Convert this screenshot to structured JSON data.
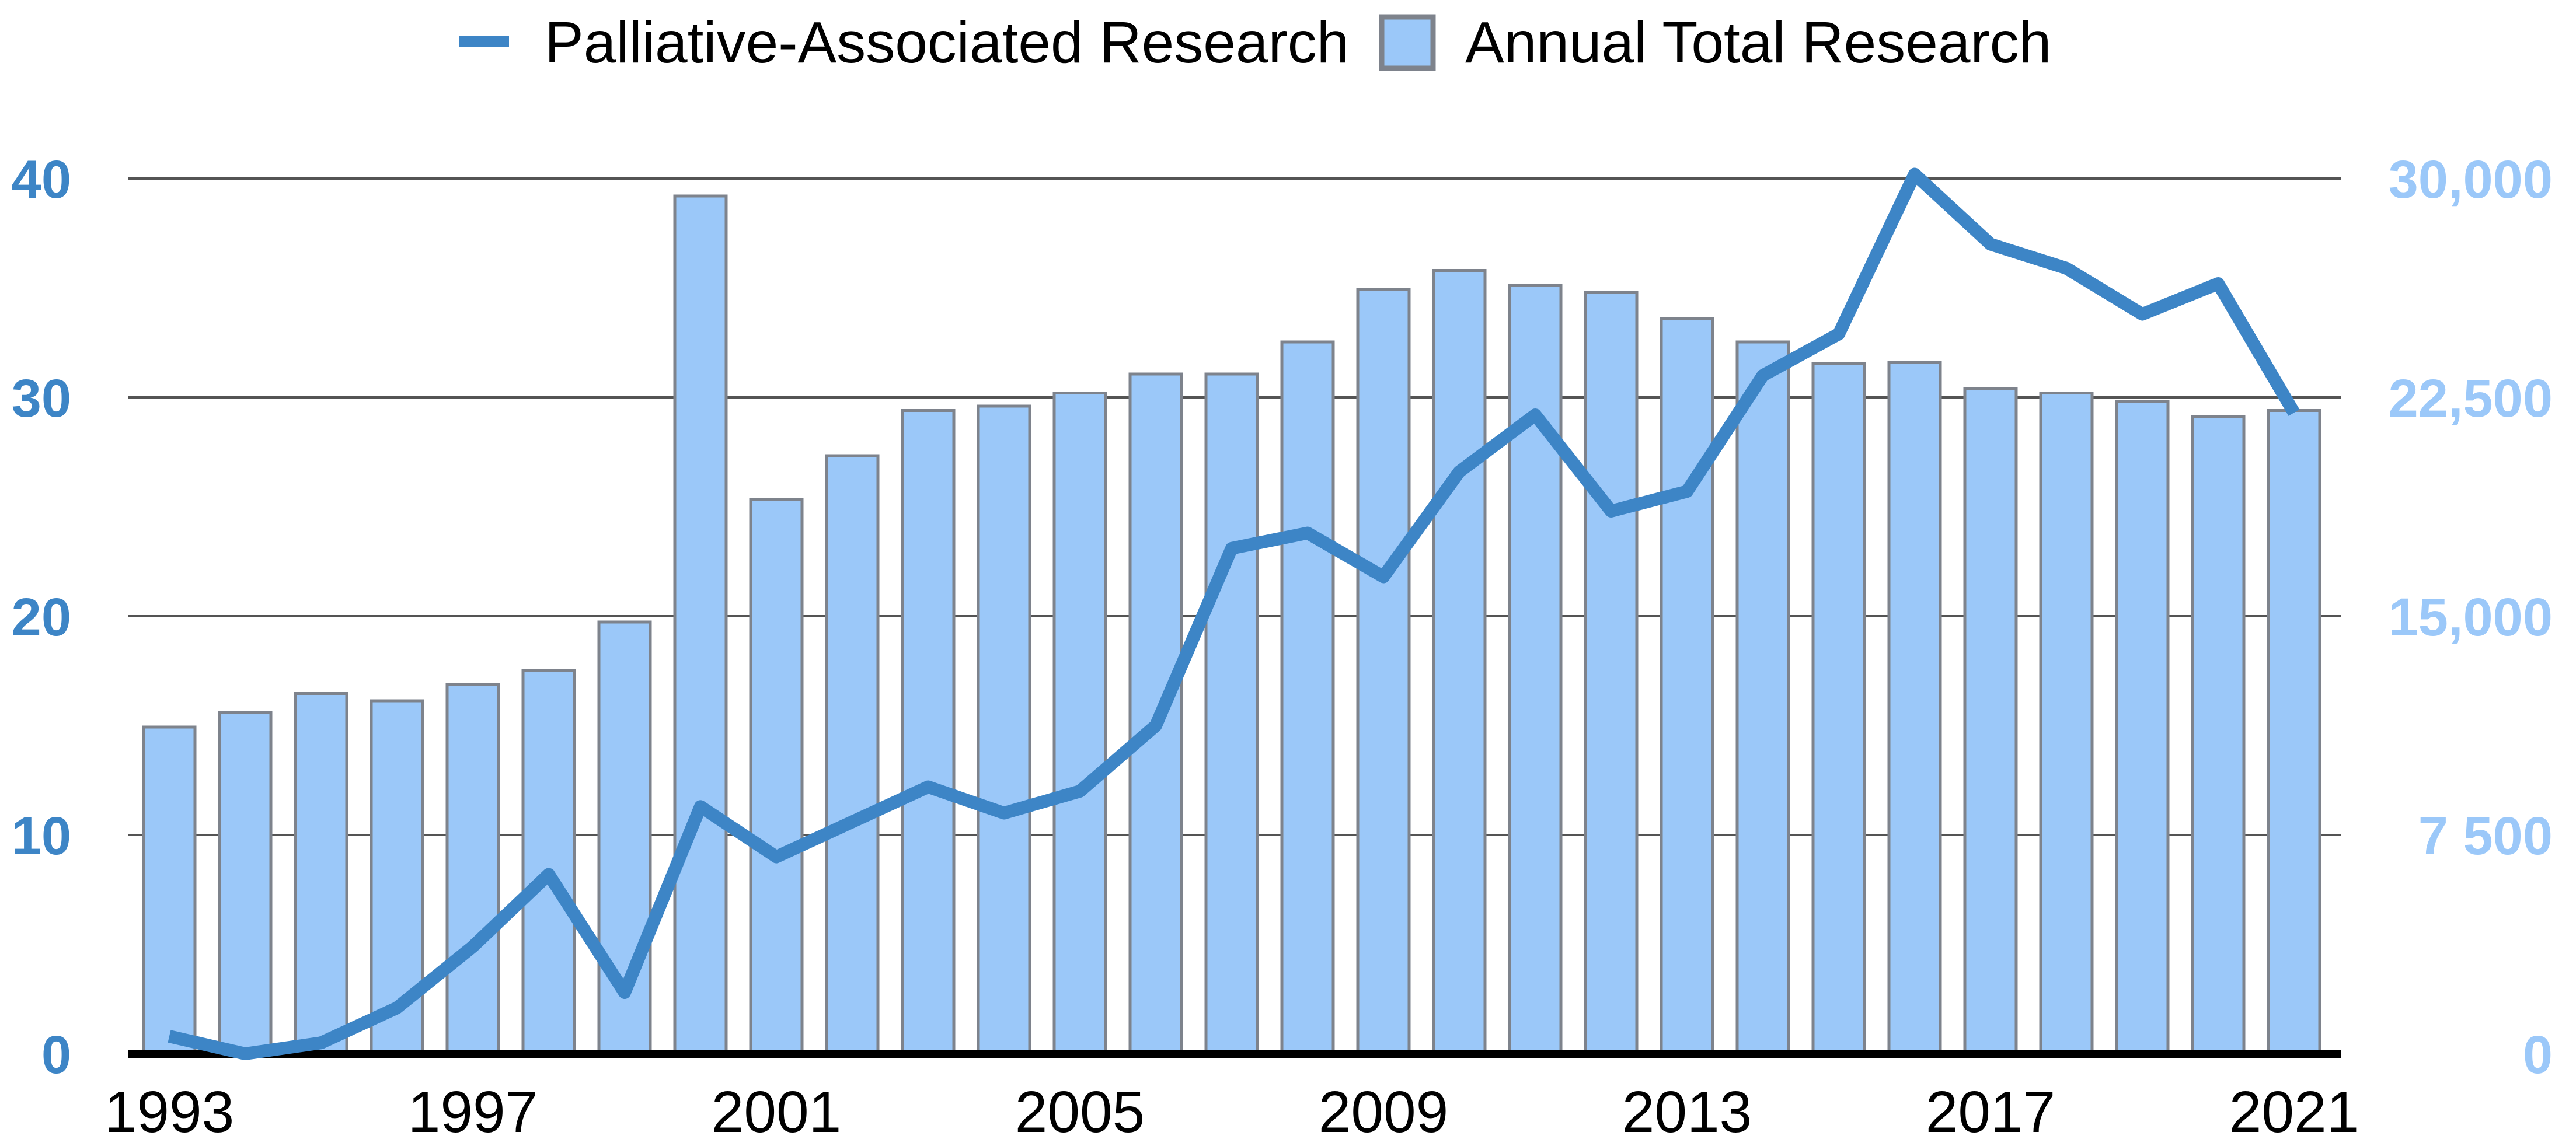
{
  "legend": {
    "items": [
      {
        "label": "Palliative-Associated Research",
        "series": "line"
      },
      {
        "label": "Annual Total Research",
        "series": "bar"
      }
    ]
  },
  "chart_data": {
    "type": "combo",
    "title": "",
    "categories": [
      1993,
      1994,
      1995,
      1996,
      1997,
      1998,
      1999,
      2000,
      2001,
      2002,
      2003,
      2004,
      2005,
      2006,
      2007,
      2008,
      2009,
      2010,
      2011,
      2012,
      2013,
      2014,
      2015,
      2016,
      2017,
      2018,
      2019,
      2020,
      2021
    ],
    "series": [
      {
        "name": "Palliative-Associated Research",
        "type": "line",
        "axis": "left",
        "color": "#3d85c6",
        "values": [
          0.8,
          0,
          0.5,
          2.1,
          4.9,
          8.2,
          2.8,
          11.3,
          9,
          10.6,
          12.2,
          11,
          12,
          15,
          23.1,
          23.8,
          21.8,
          26.6,
          29.2,
          24.8,
          25.7,
          31,
          32.9,
          40.2,
          37,
          35.9,
          33.8,
          35.2,
          29.3
        ]
      },
      {
        "name": "Annual Total Research",
        "type": "bar",
        "axis": "right",
        "color": "#9bc8f9",
        "border_color": "#7e838c",
        "values": [
          11200,
          11700,
          12350,
          12100,
          12650,
          13150,
          14800,
          29400,
          19000,
          20500,
          22050,
          22200,
          22650,
          23300,
          23300,
          24400,
          26200,
          26850,
          26350,
          26100,
          25200,
          24400,
          23650,
          23700,
          22800,
          22650,
          22350,
          21850,
          22050
        ]
      }
    ],
    "left_axis": {
      "range": [
        0,
        40
      ],
      "ticks": [
        0,
        10,
        20,
        30,
        40
      ],
      "labels": [
        "0",
        "10",
        "20",
        "30",
        "40"
      ],
      "color": "#3d85c6"
    },
    "right_axis": {
      "range": [
        0,
        30000
      ],
      "ticks": [
        0,
        7500,
        15000,
        22500,
        30000
      ],
      "labels": [
        "0",
        "7 500",
        "15,000",
        "22,500",
        "30,000"
      ],
      "color": "#9bc8f9"
    },
    "x_axis": {
      "tick_years": [
        1993,
        1997,
        2001,
        2005,
        2009,
        2013,
        2017,
        2021
      ],
      "tick_labels": [
        "1993",
        "1997",
        "2001",
        "2005",
        "2009",
        "2013",
        "2017",
        "2021"
      ],
      "color": "#000000"
    },
    "grid": true,
    "legend_position": "top"
  },
  "colors": {
    "grid": "#545454",
    "axis": "#000000",
    "background": "#ffffff"
  }
}
